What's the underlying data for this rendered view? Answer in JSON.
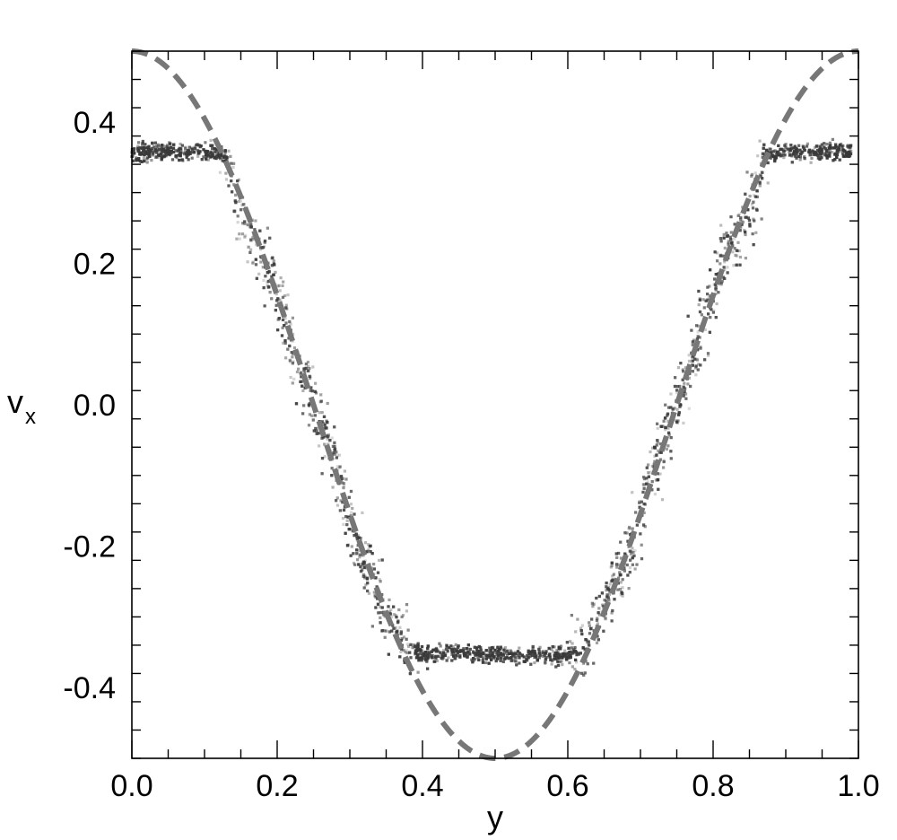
{
  "chart_data": {
    "type": "scatter",
    "title": "",
    "xlabel": "y",
    "ylabel": "v",
    "ylabel_subscript": "x",
    "xlim": [
      0.0,
      1.0
    ],
    "ylim": [
      -0.5,
      0.5
    ],
    "x_ticks": [
      "0.0",
      "0.2",
      "0.4",
      "0.6",
      "0.8",
      "1.0"
    ],
    "y_ticks": [
      "-0.4",
      "-0.2",
      "0.0",
      "0.2",
      "0.4"
    ],
    "x_tick_values": [
      0.0,
      0.2,
      0.4,
      0.6,
      0.8,
      1.0
    ],
    "y_tick_values": [
      -0.4,
      -0.2,
      0.0,
      0.2,
      0.4
    ],
    "grid": false,
    "colors": {
      "points": "#3a3a3a",
      "dashed_curve": "#777777",
      "frame": "#000000"
    },
    "series": [
      {
        "style": "scatter-density",
        "x": [
          0.0,
          0.05,
          0.1,
          0.13,
          0.15,
          0.17,
          0.19,
          0.21,
          0.23,
          0.25,
          0.27,
          0.29,
          0.31,
          0.33,
          0.35,
          0.37,
          0.4,
          0.45,
          0.5,
          0.55,
          0.6,
          0.63,
          0.65,
          0.67,
          0.69,
          0.71,
          0.73,
          0.75,
          0.77,
          0.79,
          0.81,
          0.83,
          0.85,
          0.87,
          0.9,
          0.95,
          0.99
        ],
        "y": [
          0.357,
          0.358,
          0.357,
          0.355,
          0.26,
          0.23,
          0.2,
          0.12,
          0.05,
          0.0,
          -0.06,
          -0.12,
          -0.2,
          -0.24,
          -0.29,
          -0.33,
          -0.355,
          -0.35,
          -0.355,
          -0.355,
          -0.355,
          -0.33,
          -0.28,
          -0.24,
          -0.2,
          -0.12,
          -0.05,
          0.0,
          0.05,
          0.13,
          0.2,
          0.23,
          0.26,
          0.355,
          0.357,
          0.358,
          0.357
        ]
      },
      {
        "style": "dashed",
        "function": "0.5*cos(2*pi*x)",
        "x_range": [
          0.0,
          1.0
        ]
      }
    ]
  }
}
